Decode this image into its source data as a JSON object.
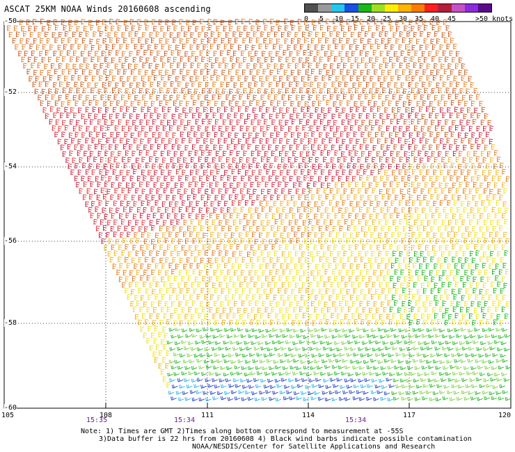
{
  "title": "ASCAT 25KM NOAA Winds 20160608 ascending",
  "legend": {
    "labels": [
      "0",
      "5",
      "10",
      "15",
      "20",
      "25",
      "30",
      "35",
      "40",
      "45",
      ">50 knots"
    ],
    "colors": [
      "#505050",
      "#9a9a9a",
      "#22c8f0",
      "#1650e6",
      "#18b818",
      "#9fe01e",
      "#ffee00",
      "#ffb400",
      "#ff7a00",
      "#ff1e1e",
      "#b41e3c",
      "#c850c8",
      "#8a2be2",
      "#5a0a8c"
    ]
  },
  "map": {
    "lat_labels": [
      "-50",
      "-52",
      "-54",
      "-56",
      "-58",
      "-60"
    ],
    "lon_labels": [
      "105",
      "108",
      "111",
      "114",
      "117",
      "120"
    ],
    "time_labels": [
      "15:35",
      "15:34",
      "15:34"
    ],
    "barb_colors": {
      "orange": "#e07a1e",
      "dark_orange": "#c85a1e",
      "crimson": "#c81e3c",
      "red": "#e03232",
      "gold": "#f0b41e",
      "yellow": "#f0e01e",
      "green": "#18b818",
      "light_green": "#78d23c",
      "blue": "#1e3cc8",
      "cyan": "#1eb4e6"
    }
  },
  "notes": {
    "line1": "Note: 1) Times are GMT 2)Times along bottom correspond to measurement at -55S",
    "line2": "3)Data buffer is 22 hrs from 20160608 4) Black wind barbs indicate possible contamination",
    "line3": "NOAA/NESDIS/Center for Satellite Applications and Research"
  }
}
